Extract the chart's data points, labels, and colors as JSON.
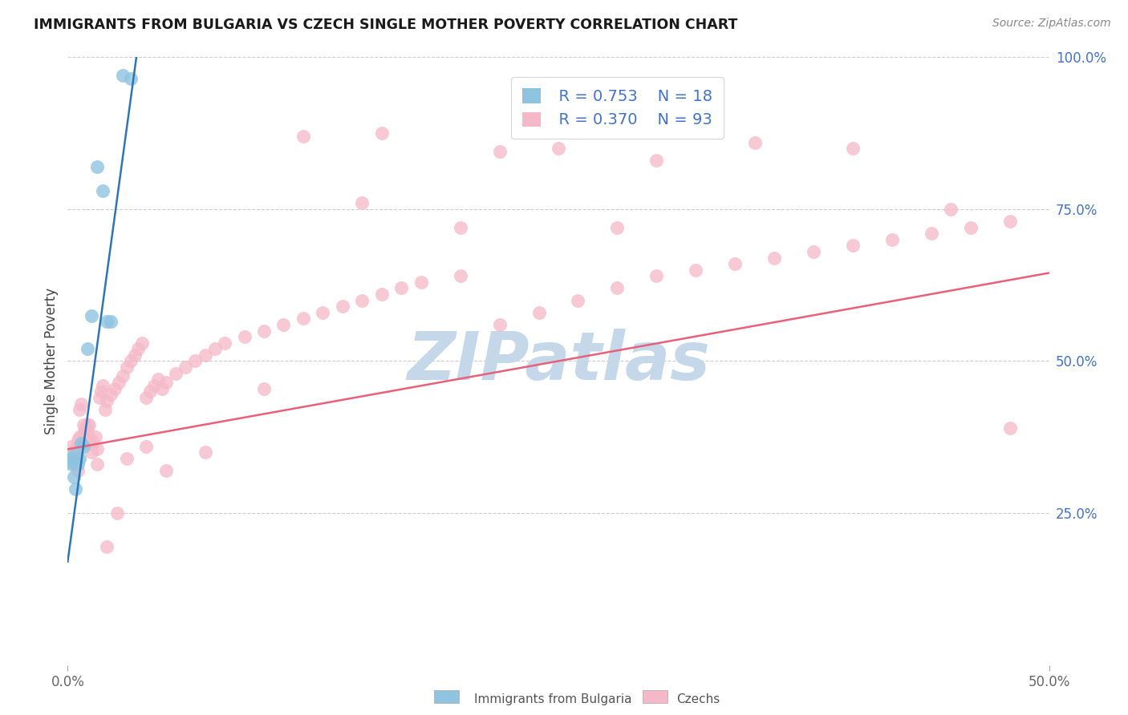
{
  "title": "IMMIGRANTS FROM BULGARIA VS CZECH SINGLE MOTHER POVERTY CORRELATION CHART",
  "source": "Source: ZipAtlas.com",
  "ylabel": "Single Mother Poverty",
  "xlim": [
    0.0,
    0.5
  ],
  "ylim": [
    0.0,
    1.0
  ],
  "xtick_positions": [
    0.0,
    0.5
  ],
  "xtick_labels": [
    "0.0%",
    "50.0%"
  ],
  "ytick_positions": [
    0.25,
    0.5,
    0.75,
    1.0
  ],
  "ytick_labels": [
    "25.0%",
    "50.0%",
    "75.0%",
    "100.0%"
  ],
  "legend_r_bulgaria": "R = 0.753",
  "legend_n_bulgaria": "N = 18",
  "legend_r_czech": "R = 0.370",
  "legend_n_czech": "N = 93",
  "color_bulgaria": "#8EC4E0",
  "color_czech": "#F5B8C8",
  "trendline_color_bulgaria": "#2E75B6",
  "trendline_color_czech": "#E8607A",
  "watermark_color": "#C5D8EA",
  "bg_x": [
    0.001,
    0.002,
    0.002,
    0.003,
    0.003,
    0.004,
    0.005,
    0.006,
    0.007,
    0.008,
    0.01,
    0.012,
    0.015,
    0.018,
    0.02,
    0.022,
    0.028,
    0.032
  ],
  "bg_y": [
    0.335,
    0.33,
    0.34,
    0.345,
    0.31,
    0.29,
    0.33,
    0.34,
    0.365,
    0.36,
    0.52,
    0.575,
    0.82,
    0.78,
    0.565,
    0.565,
    0.97,
    0.965
  ],
  "bg_trend_x": [
    0.0,
    0.035
  ],
  "bg_trend_y": [
    0.17,
    1.0
  ],
  "cz_trend_x": [
    0.0,
    0.5
  ],
  "cz_trend_y": [
    0.355,
    0.645
  ],
  "cz_x": [
    0.002,
    0.003,
    0.004,
    0.005,
    0.006,
    0.007,
    0.008,
    0.009,
    0.01,
    0.011,
    0.012,
    0.013,
    0.014,
    0.015,
    0.016,
    0.017,
    0.018,
    0.019,
    0.02,
    0.022,
    0.024,
    0.026,
    0.028,
    0.03,
    0.032,
    0.034,
    0.036,
    0.038,
    0.04,
    0.042,
    0.044,
    0.046,
    0.048,
    0.05,
    0.055,
    0.06,
    0.065,
    0.07,
    0.075,
    0.08,
    0.09,
    0.1,
    0.11,
    0.12,
    0.13,
    0.14,
    0.15,
    0.16,
    0.17,
    0.18,
    0.2,
    0.22,
    0.24,
    0.26,
    0.28,
    0.3,
    0.32,
    0.34,
    0.36,
    0.38,
    0.4,
    0.42,
    0.44,
    0.46,
    0.48,
    0.003,
    0.004,
    0.005,
    0.006,
    0.007,
    0.008,
    0.01,
    0.012,
    0.015,
    0.02,
    0.025,
    0.03,
    0.04,
    0.05,
    0.07,
    0.1,
    0.15,
    0.2,
    0.25,
    0.3,
    0.35,
    0.4,
    0.45,
    0.12,
    0.16,
    0.22,
    0.28,
    0.48
  ],
  "cz_y": [
    0.36,
    0.35,
    0.355,
    0.37,
    0.375,
    0.365,
    0.38,
    0.39,
    0.385,
    0.395,
    0.37,
    0.365,
    0.375,
    0.355,
    0.44,
    0.45,
    0.46,
    0.42,
    0.435,
    0.445,
    0.455,
    0.465,
    0.475,
    0.49,
    0.5,
    0.51,
    0.52,
    0.53,
    0.44,
    0.45,
    0.46,
    0.47,
    0.455,
    0.465,
    0.48,
    0.49,
    0.5,
    0.51,
    0.52,
    0.53,
    0.54,
    0.55,
    0.56,
    0.57,
    0.58,
    0.59,
    0.6,
    0.61,
    0.62,
    0.63,
    0.64,
    0.56,
    0.58,
    0.6,
    0.62,
    0.64,
    0.65,
    0.66,
    0.67,
    0.68,
    0.69,
    0.7,
    0.71,
    0.72,
    0.73,
    0.34,
    0.33,
    0.32,
    0.42,
    0.43,
    0.395,
    0.395,
    0.35,
    0.33,
    0.195,
    0.25,
    0.34,
    0.36,
    0.32,
    0.35,
    0.455,
    0.76,
    0.72,
    0.85,
    0.83,
    0.86,
    0.85,
    0.75,
    0.87,
    0.875,
    0.845,
    0.72,
    0.39
  ]
}
